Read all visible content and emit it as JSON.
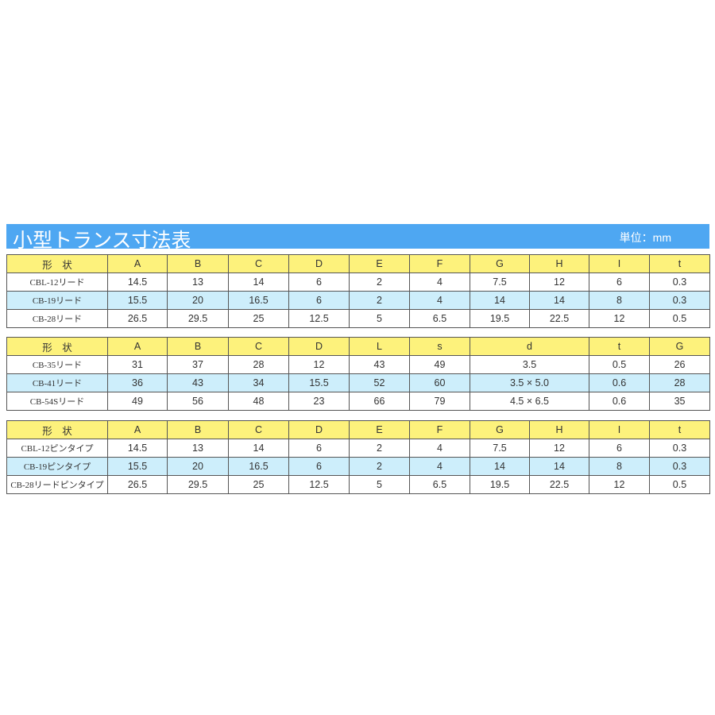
{
  "title": "小型トランス寸法表",
  "unit": "単位：mm",
  "colors": {
    "title_bar": "#4ea7f2",
    "header": "#fdf27c",
    "highlight_row": "#cdeefb"
  },
  "tables": [
    {
      "headers": [
        "形　状",
        "A",
        "B",
        "C",
        "D",
        "E",
        "F",
        "G",
        "H",
        "I",
        "t"
      ],
      "rows": [
        [
          "CBL-12リード",
          "14.5",
          "13",
          "14",
          "6",
          "2",
          "4",
          "7.5",
          "12",
          "6",
          "0.3"
        ],
        [
          "CB-19リード",
          "15.5",
          "20",
          "16.5",
          "6",
          "2",
          "4",
          "14",
          "14",
          "8",
          "0.3"
        ],
        [
          "CB-28リード",
          "26.5",
          "29.5",
          "25",
          "12.5",
          "5",
          "6.5",
          "19.5",
          "22.5",
          "12",
          "0.5"
        ]
      ]
    },
    {
      "headers": [
        "形　状",
        "A",
        "B",
        "C",
        "D",
        "L",
        "s",
        "d",
        "t",
        "G"
      ],
      "rows": [
        [
          "CB-35リード",
          "31",
          "37",
          "28",
          "12",
          "43",
          "49",
          "3.5",
          "0.5",
          "26"
        ],
        [
          "CB-41リード",
          "36",
          "43",
          "34",
          "15.5",
          "52",
          "60",
          "3.5 × 5.0",
          "0.6",
          "28"
        ],
        [
          "CB-54Sリード",
          "49",
          "56",
          "48",
          "23",
          "66",
          "79",
          "4.5 × 6.5",
          "0.6",
          "35"
        ]
      ]
    },
    {
      "headers": [
        "形　状",
        "A",
        "B",
        "C",
        "D",
        "E",
        "F",
        "G",
        "H",
        "I",
        "t"
      ],
      "rows": [
        [
          "CBL-12ピンタイプ",
          "14.5",
          "13",
          "14",
          "6",
          "2",
          "4",
          "7.5",
          "12",
          "6",
          "0.3"
        ],
        [
          "CB-19ピンタイプ",
          "15.5",
          "20",
          "16.5",
          "6",
          "2",
          "4",
          "14",
          "14",
          "8",
          "0.3"
        ],
        [
          "CB-28リードピンタイプ",
          "26.5",
          "29.5",
          "25",
          "12.5",
          "5",
          "6.5",
          "19.5",
          "22.5",
          "12",
          "0.5"
        ]
      ]
    }
  ]
}
